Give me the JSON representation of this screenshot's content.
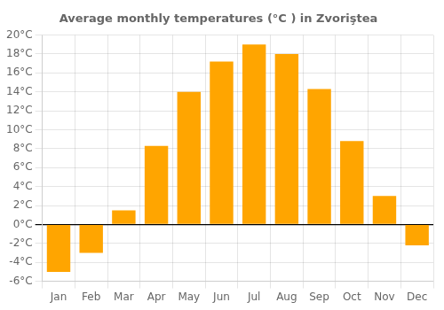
{
  "chart_data": {
    "type": "bar",
    "title": "Average monthly temperatures (°C ) in Zvoriştea",
    "categories": [
      "Jan",
      "Feb",
      "Mar",
      "Apr",
      "May",
      "Jun",
      "Jul",
      "Aug",
      "Sep",
      "Oct",
      "Nov",
      "Dec"
    ],
    "values": [
      -5.0,
      -3.0,
      1.5,
      8.3,
      14.0,
      17.2,
      19.0,
      18.0,
      14.3,
      8.8,
      3.0,
      -2.2
    ],
    "color": "#FFA500",
    "ylim": [
      -6,
      20
    ],
    "yticks": [
      {
        "value": -6,
        "label": "-6°C"
      },
      {
        "value": -4,
        "label": "-4°C"
      },
      {
        "value": -2,
        "label": "-2°C"
      },
      {
        "value": 0,
        "label": "0°C"
      },
      {
        "value": 2,
        "label": "2°C"
      },
      {
        "value": 4,
        "label": "4°C"
      },
      {
        "value": 6,
        "label": "6°C"
      },
      {
        "value": 8,
        "label": "8°C"
      },
      {
        "value": 10,
        "label": "10°C"
      },
      {
        "value": 12,
        "label": "12°C"
      },
      {
        "value": 14,
        "label": "14°C"
      },
      {
        "value": 16,
        "label": "16°C"
      },
      {
        "value": 18,
        "label": "18°C"
      },
      {
        "value": 20,
        "label": "20°C"
      }
    ],
    "grid": true
  }
}
